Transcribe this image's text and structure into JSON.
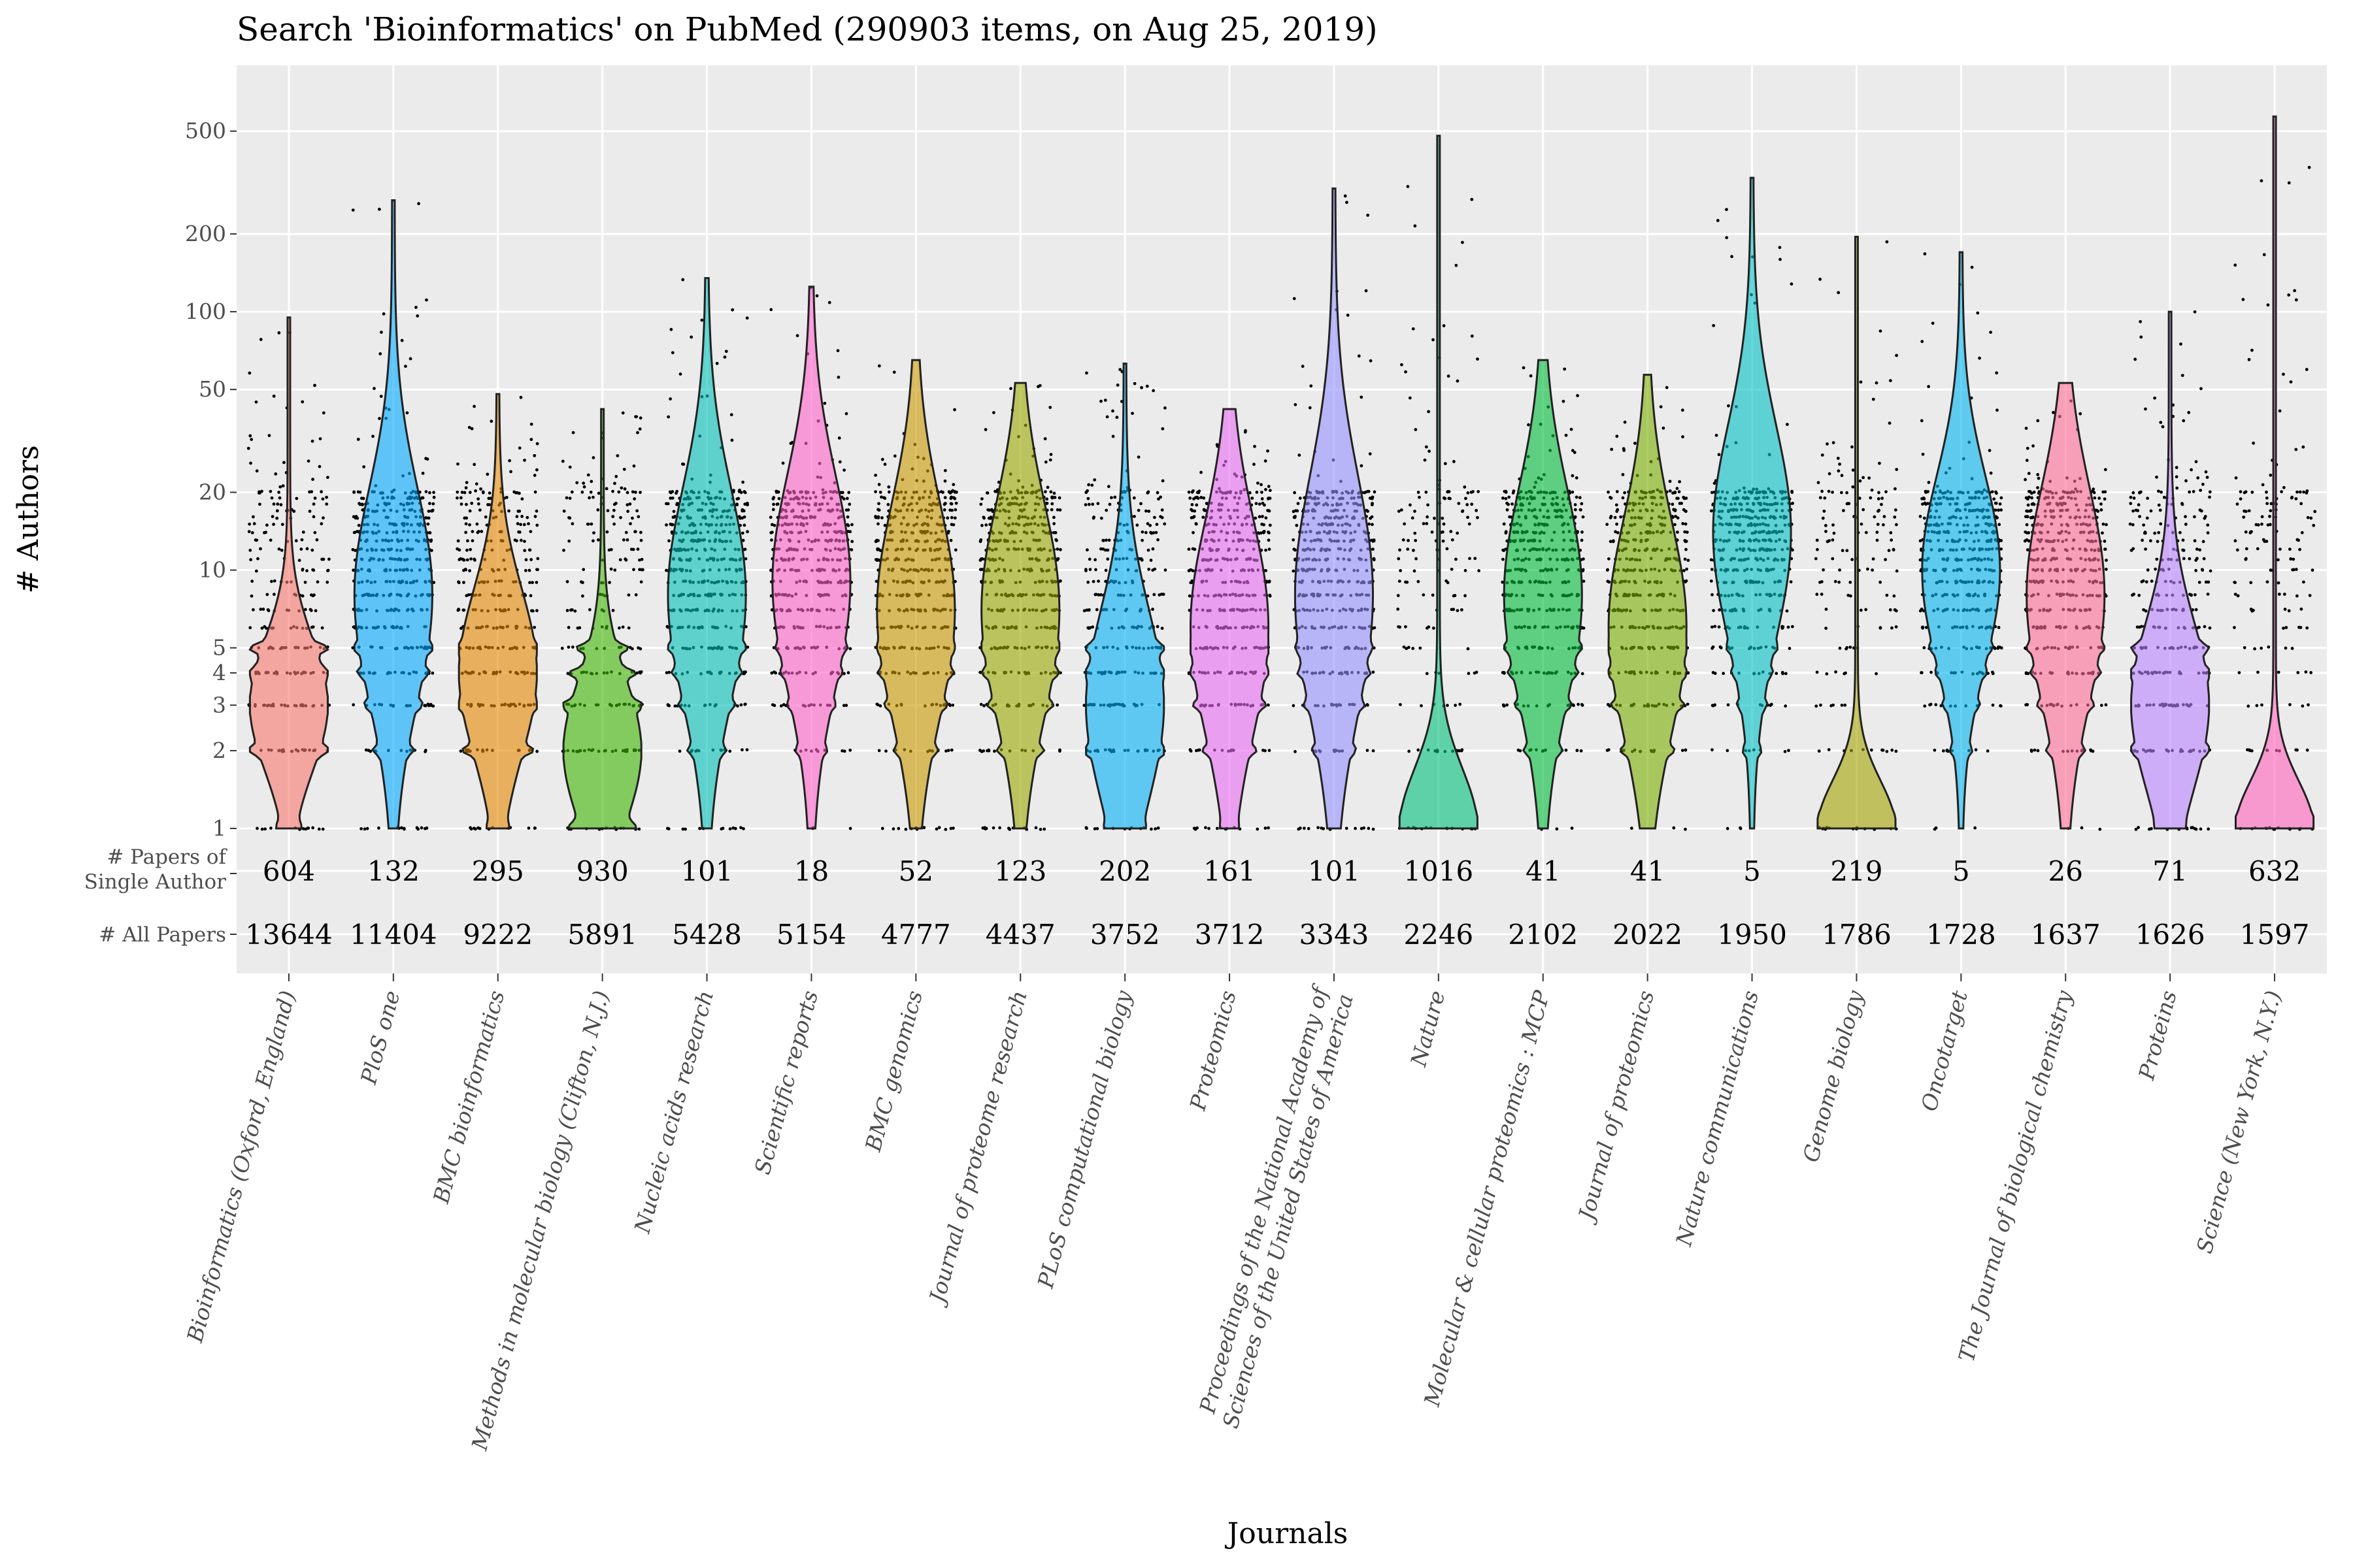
{
  "chart_data": {
    "type": "violin",
    "title": "Search 'Bioinformatics' on PubMed (290903 items, on Aug 25, 2019)",
    "xlabel": "Journals",
    "ylabel": "# Authors",
    "yscale": "log",
    "ylim": [
      1,
      800
    ],
    "yticks": [
      "1",
      "2",
      "3",
      "4",
      "5",
      "10",
      "20",
      "50",
      "100",
      "200",
      "500"
    ],
    "ytick_values": [
      1,
      2,
      3,
      4,
      5,
      10,
      20,
      50,
      100,
      200,
      500
    ],
    "row_labels": {
      "single_author_line1": "# Papers of",
      "single_author_line2": "Single Author",
      "all_papers": "# All Papers"
    },
    "categories": [
      {
        "name": "Bioinformatics (Oxford, England)",
        "single_author": "604",
        "all_papers": "13644",
        "color": "#F8766D",
        "max_authors": 95
      },
      {
        "name": "PloS one",
        "single_author": "132",
        "all_papers": "11404",
        "color": "#00A9FF",
        "max_authors": 270
      },
      {
        "name": "BMC bioinformatics",
        "single_author": "295",
        "all_papers": "9222",
        "color": "#E58700",
        "max_authors": 48
      },
      {
        "name": "Methods in molecular biology (Clifton, N.J.)",
        "single_author": "930",
        "all_papers": "5891",
        "color": "#3DB600",
        "max_authors": 42
      },
      {
        "name": "Nucleic acids research",
        "single_author": "101",
        "all_papers": "5428",
        "color": "#00C0B8",
        "max_authors": 135
      },
      {
        "name": "Scientific reports",
        "single_author": "18",
        "all_papers": "5154",
        "color": "#FF61C9",
        "max_authors": 125
      },
      {
        "name": "BMC genomics",
        "single_author": "52",
        "all_papers": "4777",
        "color": "#C99800",
        "max_authors": 65
      },
      {
        "name": "Journal of proteome research",
        "single_author": "123",
        "all_papers": "4437",
        "color": "#99A800",
        "max_authors": 53
      },
      {
        "name": "PLoS computational biology",
        "single_author": "202",
        "all_papers": "3752",
        "color": "#00B0F6",
        "max_authors": 63
      },
      {
        "name": "Proteomics",
        "single_author": "161",
        "all_papers": "3712",
        "color": "#E76BF3",
        "max_authors": 42
      },
      {
        "name": "Proceedings of the National Academy of Sciences of the United States of America",
        "name_line1": "Proceedings of the National Academy of",
        "name_line2": "Sciences of the United States of America",
        "single_author": "101",
        "all_papers": "3343",
        "color": "#9590FF",
        "max_authors": 300
      },
      {
        "name": "Nature",
        "single_author": "1016",
        "all_papers": "2246",
        "color": "#00BF7D",
        "max_authors": 480
      },
      {
        "name": "Molecular & cellular proteomics : MCP",
        "single_author": "41",
        "all_papers": "2102",
        "color": "#00BA38",
        "max_authors": 65
      },
      {
        "name": "Journal of proteomics",
        "single_author": "41",
        "all_papers": "2022",
        "color": "#7CAE00",
        "max_authors": 57
      },
      {
        "name": "Nature communications",
        "single_author": "5",
        "all_papers": "1950",
        "color": "#00BFC4",
        "max_authors": 330
      },
      {
        "name": "Genome biology",
        "single_author": "219",
        "all_papers": "1786",
        "color": "#A3A500",
        "max_authors": 195
      },
      {
        "name": "Oncotarget",
        "single_author": "5",
        "all_papers": "1728",
        "color": "#00B4EF",
        "max_authors": 170
      },
      {
        "name": "The Journal of biological chemistry",
        "single_author": "26",
        "all_papers": "1637",
        "color": "#FF6A98",
        "max_authors": 53
      },
      {
        "name": "Proteins",
        "single_author": "71",
        "all_papers": "1626",
        "color": "#B983FF",
        "max_authors": 100
      },
      {
        "name": "Science (New York, N.Y.)",
        "single_author": "632",
        "all_papers": "1597",
        "color": "#FF62BC",
        "max_authors": 570
      }
    ],
    "grid": true,
    "legend": "none",
    "panel_color": "#EBEBEB"
  }
}
